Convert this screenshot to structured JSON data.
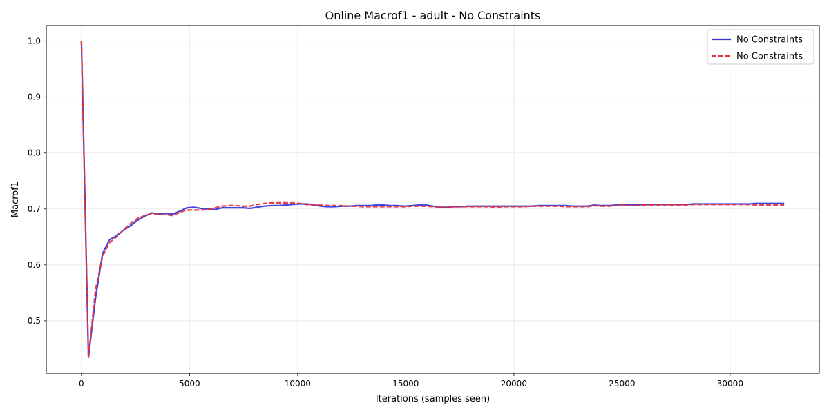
{
  "chart_data": {
    "type": "line",
    "title": "Online Macrof1 - adult - No Constraints",
    "xlabel": "Iterations (samples seen)",
    "ylabel": "Macrof1",
    "xlim": [
      -1625,
      34125
    ],
    "ylim": [
      0.406,
      1.028
    ],
    "xticks": [
      0,
      5000,
      10000,
      15000,
      20000,
      25000,
      30000
    ],
    "yticks": [
      0.5,
      0.6,
      0.7,
      0.8,
      0.9,
      1.0
    ],
    "xtick_labels": [
      "0",
      "5000",
      "10000",
      "15000",
      "20000",
      "25000",
      "30000"
    ],
    "ytick_labels": [
      "0.5",
      "0.6",
      "0.7",
      "0.8",
      "0.9",
      "1.0"
    ],
    "grid": true,
    "legend_position": "top-right",
    "series": [
      {
        "name": "No Constraints",
        "color": "#3333dd",
        "dash": "solid",
        "x": [
          0,
          325,
          650,
          975,
          1300,
          1625,
          1950,
          2275,
          2600,
          2925,
          3250,
          3575,
          3900,
          4225,
          4550,
          4875,
          5200,
          5525,
          5850,
          6175,
          6500,
          6825,
          7150,
          7475,
          7800,
          8125,
          8450,
          8775,
          9100,
          9425,
          9750,
          10075,
          10400,
          10725,
          11050,
          11375,
          11700,
          12025,
          12350,
          12675,
          13000,
          13325,
          13650,
          13975,
          14300,
          14625,
          14950,
          15275,
          15600,
          15925,
          16250,
          16575,
          16900,
          17225,
          17550,
          17875,
          18200,
          18525,
          18850,
          19175,
          19500,
          19825,
          20150,
          20475,
          20800,
          21125,
          21450,
          21775,
          22100,
          22425,
          22750,
          23075,
          23400,
          23725,
          24050,
          24375,
          24700,
          25025,
          25350,
          25675,
          26000,
          26325,
          26650,
          26975,
          27300,
          27625,
          27950,
          28275,
          28600,
          28925,
          29250,
          29575,
          29900,
          30225,
          30550,
          30875,
          31200,
          31525,
          31850,
          32175,
          32500
        ],
        "y": [
          1.0,
          0.435,
          0.54,
          0.62,
          0.645,
          0.652,
          0.662,
          0.67,
          0.68,
          0.687,
          0.693,
          0.691,
          0.692,
          0.691,
          0.696,
          0.702,
          0.703,
          0.701,
          0.7,
          0.699,
          0.702,
          0.702,
          0.702,
          0.702,
          0.701,
          0.703,
          0.705,
          0.706,
          0.706,
          0.707,
          0.708,
          0.709,
          0.709,
          0.708,
          0.705,
          0.704,
          0.704,
          0.705,
          0.705,
          0.706,
          0.706,
          0.706,
          0.707,
          0.707,
          0.706,
          0.706,
          0.705,
          0.706,
          0.707,
          0.707,
          0.705,
          0.703,
          0.703,
          0.704,
          0.704,
          0.705,
          0.705,
          0.705,
          0.705,
          0.705,
          0.705,
          0.705,
          0.705,
          0.705,
          0.705,
          0.706,
          0.706,
          0.706,
          0.706,
          0.706,
          0.705,
          0.705,
          0.705,
          0.707,
          0.706,
          0.706,
          0.707,
          0.708,
          0.707,
          0.707,
          0.708,
          0.708,
          0.708,
          0.708,
          0.708,
          0.708,
          0.708,
          0.709,
          0.709,
          0.709,
          0.709,
          0.709,
          0.709,
          0.709,
          0.709,
          0.709,
          0.71,
          0.71,
          0.71,
          0.71,
          0.71
        ]
      },
      {
        "name": "No Constraints",
        "color": "#e8303a",
        "dash": "dashed",
        "x": [
          0,
          325,
          650,
          975,
          1300,
          1625,
          1950,
          2275,
          2600,
          2925,
          3250,
          3575,
          3900,
          4225,
          4550,
          4875,
          5200,
          5525,
          5850,
          6175,
          6500,
          6825,
          7150,
          7475,
          7800,
          8125,
          8450,
          8775,
          9100,
          9425,
          9750,
          10075,
          10400,
          10725,
          11050,
          11375,
          11700,
          12025,
          12350,
          12675,
          13000,
          13325,
          13650,
          13975,
          14300,
          14625,
          14950,
          15275,
          15600,
          15925,
          16250,
          16575,
          16900,
          17225,
          17550,
          17875,
          18200,
          18525,
          18850,
          19175,
          19500,
          19825,
          20150,
          20475,
          20800,
          21125,
          21450,
          21775,
          22100,
          22425,
          22750,
          23075,
          23400,
          23725,
          24050,
          24375,
          24700,
          25025,
          25350,
          25675,
          26000,
          26325,
          26650,
          26975,
          27300,
          27625,
          27950,
          28275,
          28600,
          28925,
          29250,
          29575,
          29900,
          30225,
          30550,
          30875,
          31200,
          31525,
          31850,
          32175,
          32500
        ],
        "y": [
          1.0,
          0.433,
          0.555,
          0.615,
          0.64,
          0.65,
          0.663,
          0.674,
          0.683,
          0.688,
          0.692,
          0.69,
          0.69,
          0.688,
          0.694,
          0.698,
          0.698,
          0.698,
          0.699,
          0.702,
          0.705,
          0.706,
          0.706,
          0.705,
          0.705,
          0.708,
          0.71,
          0.711,
          0.711,
          0.711,
          0.711,
          0.71,
          0.708,
          0.707,
          0.707,
          0.706,
          0.706,
          0.706,
          0.705,
          0.705,
          0.704,
          0.704,
          0.704,
          0.704,
          0.704,
          0.704,
          0.704,
          0.705,
          0.705,
          0.705,
          0.704,
          0.703,
          0.703,
          0.704,
          0.704,
          0.704,
          0.704,
          0.704,
          0.704,
          0.703,
          0.704,
          0.704,
          0.704,
          0.704,
          0.705,
          0.705,
          0.705,
          0.705,
          0.705,
          0.704,
          0.704,
          0.704,
          0.704,
          0.706,
          0.705,
          0.705,
          0.706,
          0.707,
          0.706,
          0.706,
          0.707,
          0.707,
          0.707,
          0.707,
          0.707,
          0.707,
          0.707,
          0.708,
          0.708,
          0.708,
          0.708,
          0.708,
          0.708,
          0.708,
          0.708,
          0.708,
          0.707,
          0.707,
          0.707,
          0.707,
          0.707
        ]
      }
    ]
  }
}
